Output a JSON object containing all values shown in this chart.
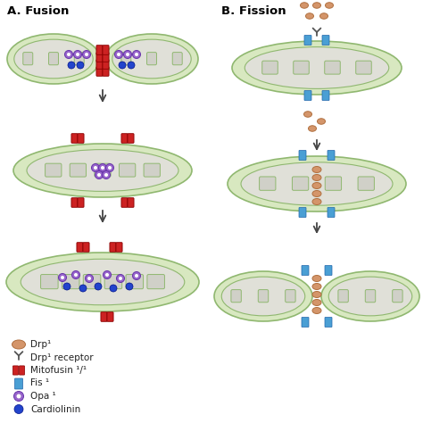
{
  "title_a": "A. Fusion",
  "title_b": "B. Fission",
  "bg_color": "#ffffff",
  "mito_outer_color": "#d8e8c0",
  "mito_inner_color": "#e8e8e8",
  "mito_border_color": "#90b870",
  "drp1_color": "#d4956a",
  "drp1_edge": "#b07040",
  "fis1_color": "#4a9fd4",
  "fis1_edge": "#2266aa",
  "mfn_color": "#cc2222",
  "mfn_edge": "#880000",
  "opa1_color": "#9966cc",
  "opa1_edge": "#6633aa",
  "cardio_color": "#2244cc",
  "cardio_edge": "#001188",
  "arrow_color": "#444444",
  "leg_labels": [
    "Drp¹",
    "Drp¹ receptor",
    "Mitofusin ¹/¹",
    "Fis ¹",
    "Opa ¹",
    "Cardiolinin"
  ]
}
